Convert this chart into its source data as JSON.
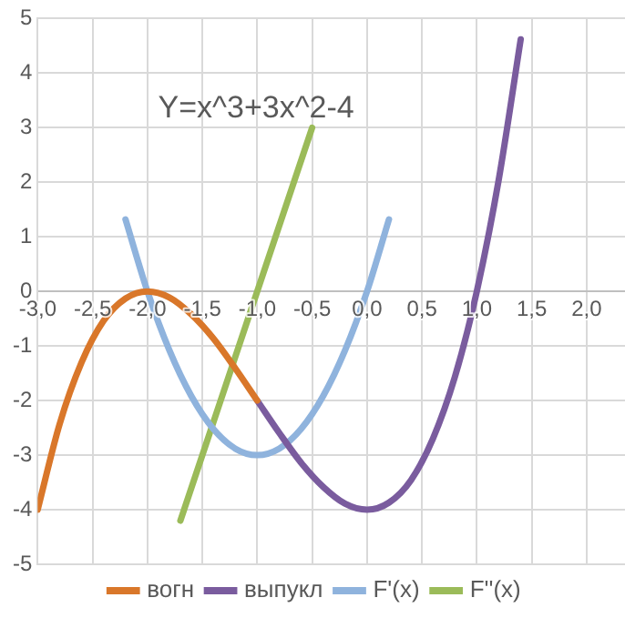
{
  "chart_data": {
    "type": "line",
    "title": "Y=x^3+3x^2-4",
    "xlim": [
      -3,
      2.35
    ],
    "xticks": [
      {
        "value": -3,
        "label": "-3,0"
      },
      {
        "value": -2.5,
        "label": "-2,5"
      },
      {
        "value": -2,
        "label": "-2,0"
      },
      {
        "value": -1.5,
        "label": "-1,5"
      },
      {
        "value": -1,
        "label": "-1,0"
      },
      {
        "value": -0.5,
        "label": "-0,5"
      },
      {
        "value": 0,
        "label": "0,0"
      },
      {
        "value": 0.5,
        "label": "0,5"
      },
      {
        "value": 1,
        "label": "1,0"
      },
      {
        "value": 1.5,
        "label": "1,5"
      },
      {
        "value": 2,
        "label": "2,0"
      }
    ],
    "ylim": [
      -5,
      5
    ],
    "yticks": [
      -5,
      -4,
      -3,
      -2,
      -1,
      0,
      1,
      2,
      3,
      4,
      5
    ],
    "grid": true,
    "legend": "bottom",
    "marker": "none",
    "line_style": "solid",
    "series": [
      {
        "name": "вогн",
        "color": "#d9772a",
        "x": [
          -3,
          -2.8,
          -2.6,
          -2.4,
          -2.2,
          -2,
          -1.8,
          -1.6,
          -1.4,
          -1.2,
          -1
        ],
        "values": [
          -4,
          -2.43,
          -1.3,
          -0.54,
          -0.13,
          0,
          -0.11,
          -0.42,
          -0.86,
          -1.41,
          -2
        ]
      },
      {
        "name": "выпукл",
        "color": "#7a5c9e",
        "x": [
          -1,
          -0.8,
          -0.6,
          -0.4,
          -0.2,
          0,
          0.2,
          0.4,
          0.6,
          0.8,
          1,
          1.2,
          1.4
        ],
        "values": [
          -2,
          -2.59,
          -3.14,
          -3.58,
          -3.89,
          -4,
          -3.87,
          -3.46,
          -2.7,
          -1.57,
          0,
          2.05,
          4.62
        ]
      },
      {
        "name": "F'(x)",
        "color": "#8fb3dd",
        "x": [
          -2.2,
          -2,
          -1.8,
          -1.6,
          -1.4,
          -1.2,
          -1,
          -0.8,
          -0.6,
          -0.4,
          -0.2,
          0,
          0.2
        ],
        "values": [
          1.32,
          0,
          -1.08,
          -1.92,
          -2.52,
          -2.88,
          -3,
          -2.88,
          -2.52,
          -1.92,
          -1.08,
          0,
          1.32
        ]
      },
      {
        "name": "F''(x)",
        "color": "#9bbb59",
        "x": [
          -1.7,
          -1.1,
          -0.5
        ],
        "values": [
          -4.2,
          -0.6,
          3
        ]
      }
    ]
  }
}
